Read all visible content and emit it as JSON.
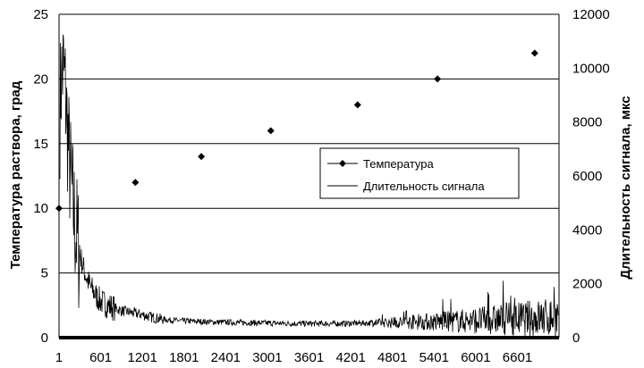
{
  "chart_data": {
    "type": "line",
    "title": "",
    "xlabel": "",
    "ylabel": "Температура раствора, град",
    "y2label": "Длительность сигнала, мкс",
    "x_ticks": [
      "1",
      "601",
      "1201",
      "1801",
      "2401",
      "3001",
      "3601",
      "4201",
      "4801",
      "5401",
      "6001",
      "6601"
    ],
    "xlim": [
      1,
      7200
    ],
    "ylim": [
      0,
      25
    ],
    "y_ticks": [
      "0",
      "5",
      "10",
      "15",
      "20",
      "25"
    ],
    "y2lim": [
      0,
      12000
    ],
    "y2_ticks": [
      "0",
      "2000",
      "4000",
      "6000",
      "8000",
      "10000",
      "12000"
    ],
    "grid": "horizontal",
    "legend": {
      "placement": "center-right",
      "entries": [
        "Температура",
        "Длительность сигнала"
      ]
    },
    "series": [
      {
        "name": "Температура",
        "axis": "left",
        "style": "markers",
        "color": "#000000",
        "x": [
          1,
          1100,
          2050,
          3050,
          4300,
          5450,
          6850
        ],
        "y": [
          10,
          12,
          14,
          16,
          18,
          20,
          22
        ]
      },
      {
        "name": "Длительность сигнала",
        "axis": "right",
        "style": "line",
        "color": "#000000",
        "x": [
          1,
          30,
          60,
          90,
          120,
          150,
          180,
          210,
          240,
          270,
          300,
          350,
          400,
          450,
          500,
          550,
          600,
          700,
          800,
          900,
          1000,
          1100,
          1200,
          1300,
          1400,
          1500,
          1600,
          1800,
          2000,
          2200,
          2400,
          2600,
          2800,
          3000,
          3200,
          3400,
          3600,
          3800,
          4000,
          4200,
          4400,
          4600,
          4800,
          5000,
          5200,
          5400,
          5600,
          5800,
          6000,
          6200,
          6400,
          6600,
          6800,
          7000,
          7200
        ],
        "y": [
          7500,
          9500,
          10000,
          9200,
          7800,
          6500,
          5500,
          4700,
          4000,
          3500,
          3100,
          2600,
          2200,
          1900,
          1700,
          1500,
          1350,
          1200,
          1100,
          1000,
          950,
          900,
          850,
          780,
          720,
          680,
          650,
          620,
          600,
          580,
          570,
          560,
          550,
          540,
          530,
          520,
          520,
          520,
          520,
          530,
          540,
          550,
          560,
          570,
          580,
          590,
          600,
          620,
          640,
          660,
          680,
          700,
          720,
          740,
          760
        ]
      }
    ]
  }
}
